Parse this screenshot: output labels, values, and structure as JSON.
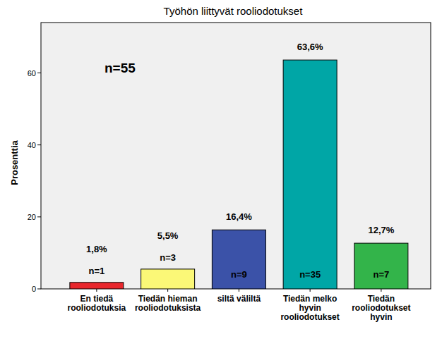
{
  "chart_data": {
    "type": "bar",
    "title": "Työhön liittyvät rooliodotukset",
    "y_label": "Prosenttia",
    "categories": [
      "En tiedä\nrooliodotuksia",
      "Tiedän hieman\nrooliodotuksista",
      "siltä väliltä",
      "Tiedän melko\nhyvin\nrooliodotukset",
      "Tiedän\nrooliodotukset\nhyvin"
    ],
    "values": [
      1.8,
      5.5,
      16.4,
      63.6,
      12.7
    ],
    "value_labels": [
      "1,8%",
      "5,5%",
      "16,4%",
      "63,6%",
      "12,7%"
    ],
    "count_labels": [
      "n=1",
      "n=3",
      "n=9",
      "n=35",
      "n=7"
    ],
    "annotations": [
      "n=55"
    ],
    "colors": [
      "#e8262c",
      "#fbf877",
      "#3b52a8",
      "#00a6a6",
      "#33b44a"
    ],
    "ylim": [
      0,
      74
    ],
    "yticks": [
      0,
      20,
      40,
      60
    ],
    "grid": false,
    "data_labels": true
  }
}
